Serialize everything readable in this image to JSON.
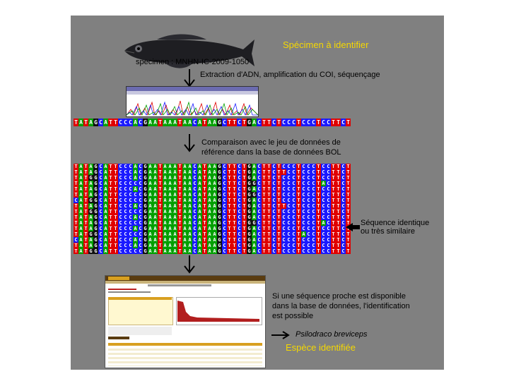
{
  "labels": {
    "specimen_title": "Spécimen à identifier",
    "specimen_id": "specimen : MNHN-IC-2009-1050",
    "step1": "Extraction d'ADN, amplification du COI, séquençage",
    "step2_line1": "Comparaison avec le jeu de données de",
    "step2_line2": "référence dans la base de données BOL",
    "identical_line1": "Séquence identique",
    "identical_line2": "ou très similaire",
    "step3_line1": "Si une séquence proche est disponible",
    "step3_line2": "dans la base de données, l'identification",
    "step3_line3": "est possible",
    "species": "Psilodraco breviceps",
    "identified": "Espèce identifiée"
  },
  "query_sequence": "TATAGCATTCCCACGAATAAATAACATAAGCTTCTGACTTCTCCCTCCCTCCTTCT",
  "reference_sequences": [
    "TATAGCATTCCCACGAATAAATAACATAAGCTTCTGACTTCTCCCTCCCTCCTTCT",
    "TATAGCATTCCCACGAATAAATAACATAAGCTTCTGACTTCTTCCTCCCTCCTTCT",
    "TATGGCATTCCCACGAATAAATAACATAAGCTTCTGACTTCTCCCTCCCTCCTTCT",
    "TATAGCATTCCCCCGAATAAATAACATAAGCTTCTGGCTTCTCCCTCCCTACTTCT",
    "TATAGCATTCCCACGAATAAATAACATAAGCTTCTGACTTCTCCCTCCCTCCTTCT",
    "TATAGCATTCCCCCGAATAAATAACATAAGCTTCTGGCTTCTCCCTCCCTCCTTCT",
    "CATGGCATTCCCCCGAATAAATAACATAAGCTTCTGACTTCTCCCTCCCTCCTTCT",
    "TATAGCATTCCCACGAATAAATAACATAAGCTTCTGACTTCTTCCTCCCTCCTTCT",
    "TATGGCATTCCCCCGAATAAATAACATAAGCTTCTGACTTCTCCCTCCCTCCTTCT",
    "TATAGCATTCCCACGAATAAATAACATAAGCTTCTGACTTCTCCCTCCCTCCTTCT",
    "TATAGCATTCCCCCGAATAAATAACATAAGCTTCTGGCTTCTCCCTCCCTACTTCT",
    "TATAGCATTCCCACGAATAAATAACATAAGCTTCTGACTTCTCCCTCCCTCCTTCT",
    "TATGGCATTCCCCCGAATAAATAACATAAGCTTCTGACTTCTCCCTACCTCCTTCT",
    "CATAGCATTCCCACGAATAAATAACATAAGCTTCTGACTTCTCCCTCCCTCCTTCT",
    "TATAGCATTCCCACGAATAAATAACATAAGCTTCTGACTTCTCCCTCCCTCCTTCT",
    "TATGGCATTCCCCCGAATAAATAACATAAGCTTCTGACTTCTCCCTCCCTCCTTCT"
  ],
  "base_colors": {
    "A": "#00a000",
    "T": "#e00000",
    "C": "#1a1aff",
    "G": "#101010"
  },
  "icons": {
    "down_arrow": "down-arrow-icon",
    "left_arrow": "left-arrow-icon",
    "right_arrow": "right-arrow-icon"
  }
}
